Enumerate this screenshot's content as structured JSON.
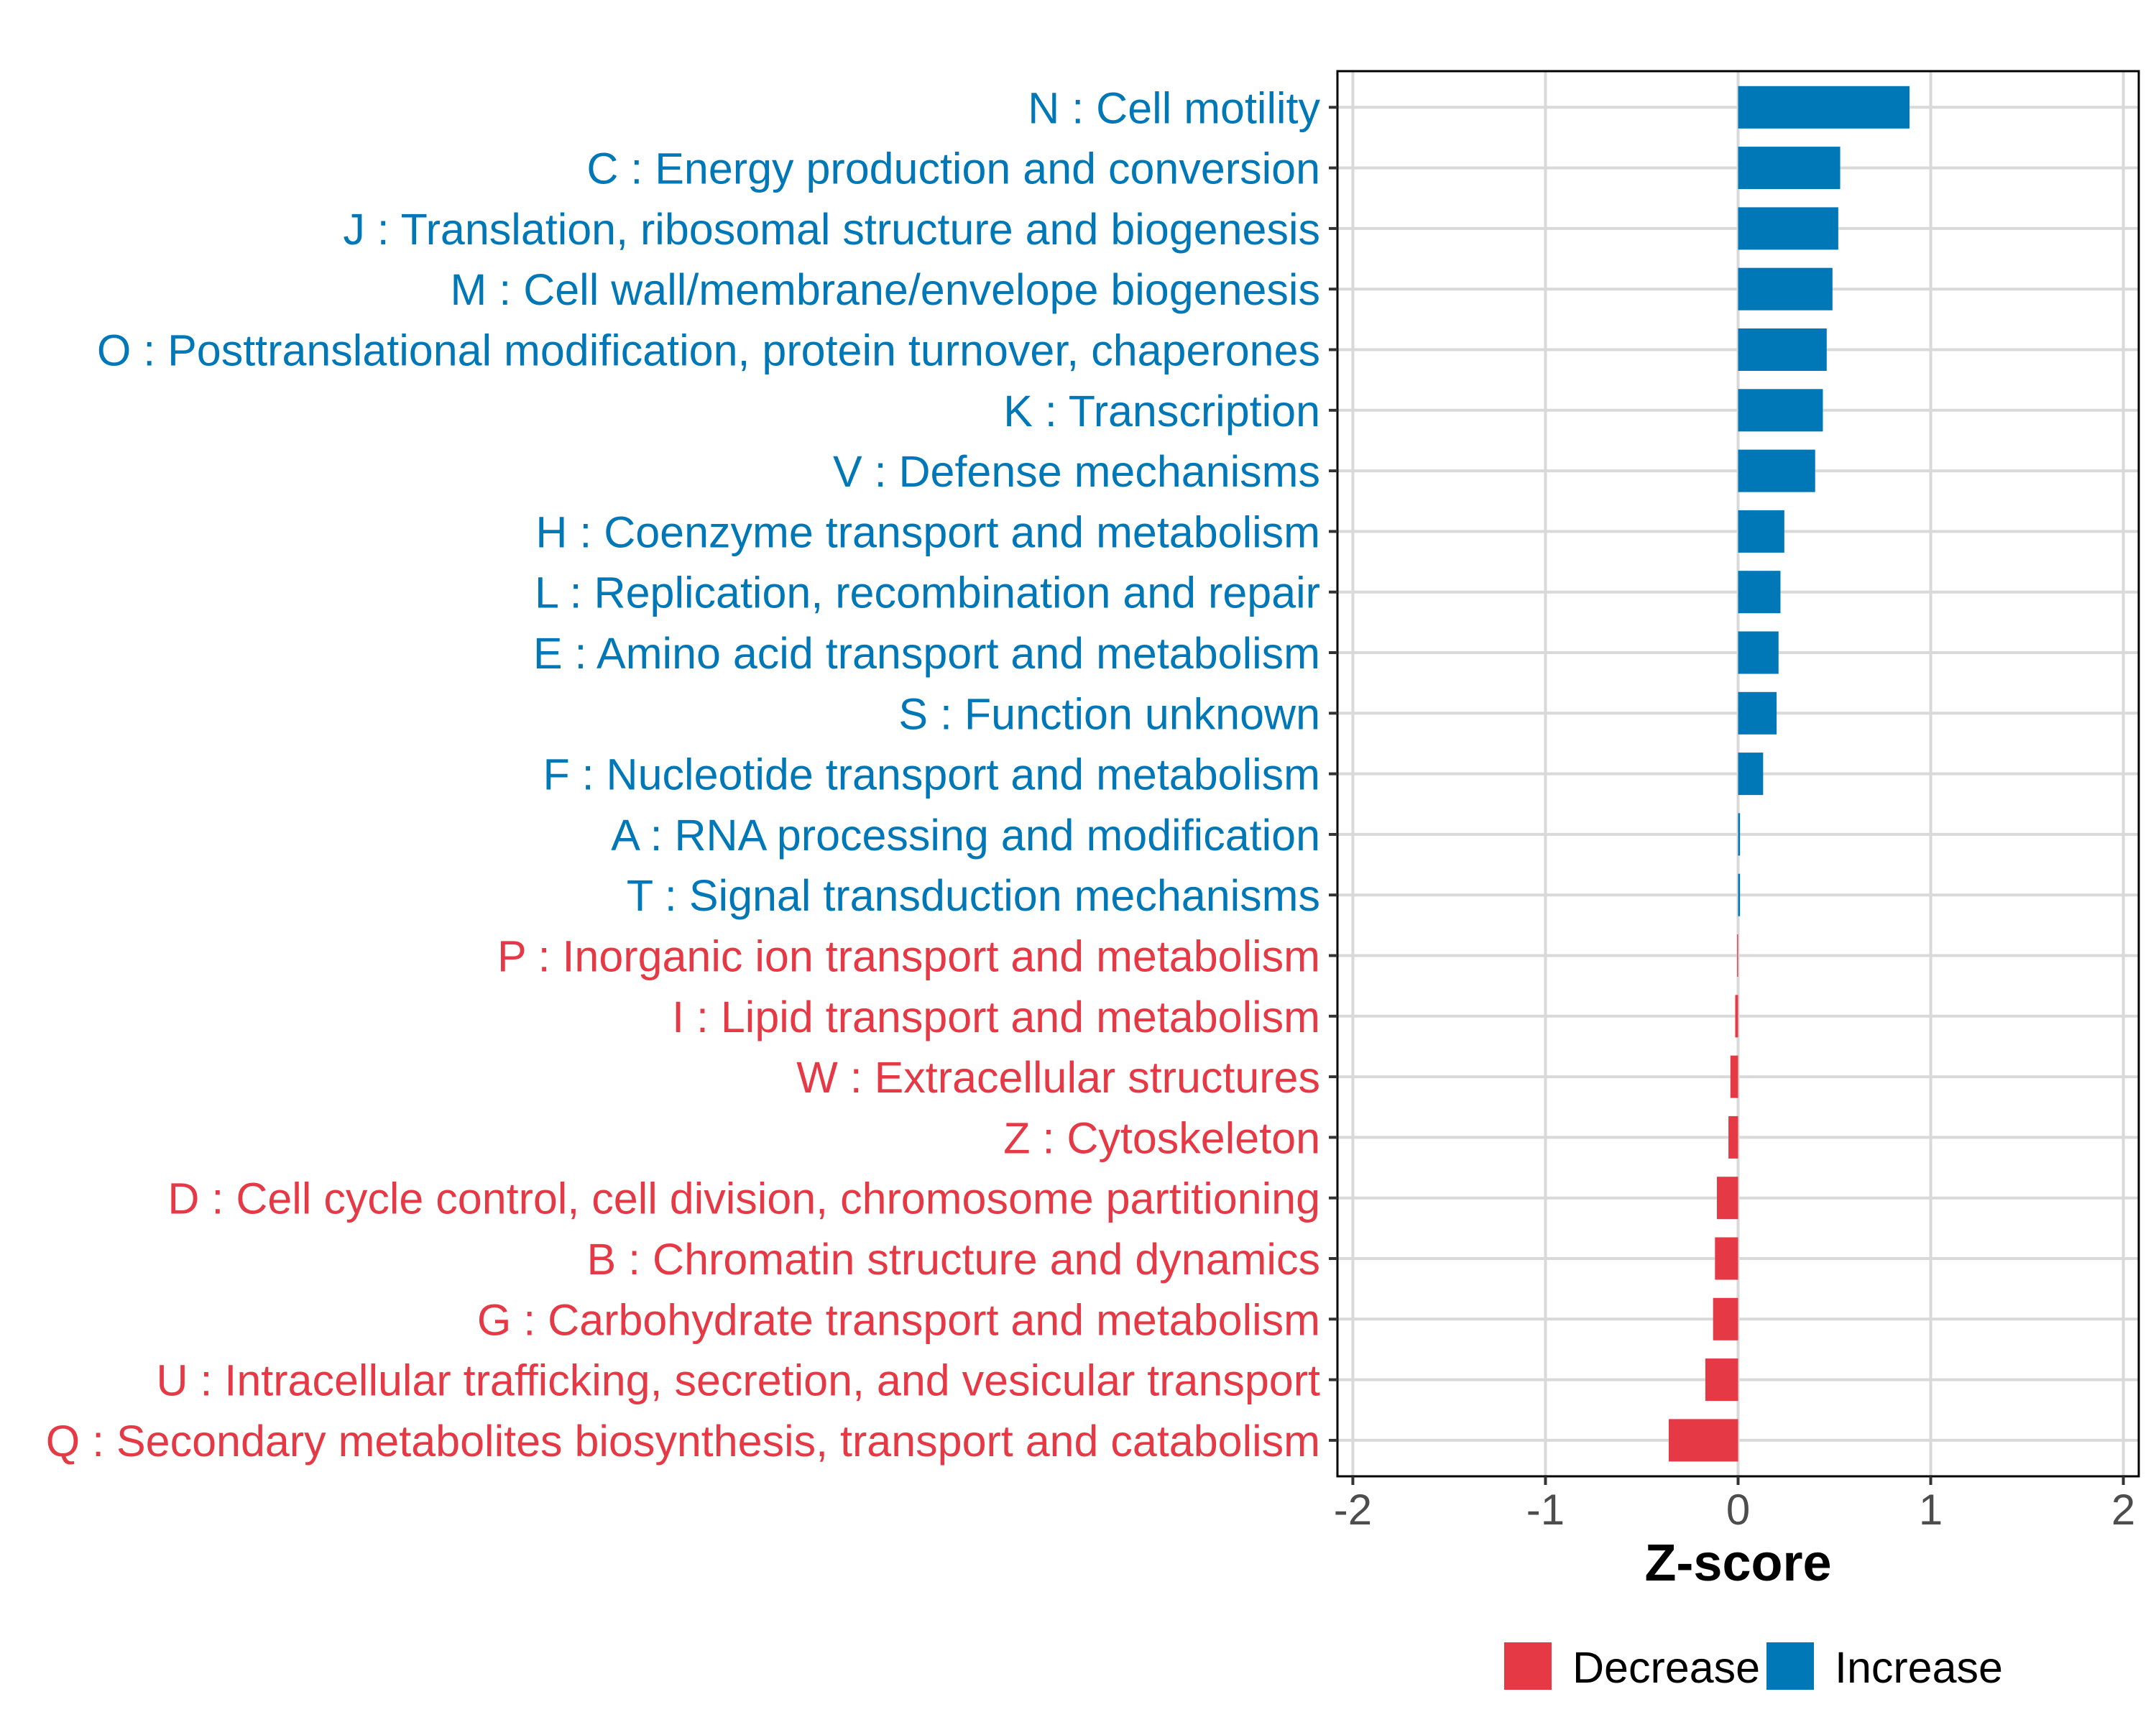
{
  "chart_data": {
    "type": "bar",
    "orientation": "horizontal",
    "title": "",
    "xlabel": "Z-score",
    "ylabel": "",
    "xlim": [
      -2.08,
      2.08
    ],
    "x_ticks": [
      -2,
      -1,
      0,
      1,
      2
    ],
    "x_tick_labels": [
      "-2",
      "-1",
      "0",
      "1",
      "2"
    ],
    "grid": true,
    "legend": {
      "position": "bottom",
      "entries": [
        {
          "name": "Decrease",
          "color": "#E63946"
        },
        {
          "name": "Increase",
          "color": "#0077B6"
        }
      ]
    },
    "categories": [
      "N : Cell motility",
      "C : Energy production and conversion",
      "J : Translation, ribosomal structure and biogenesis",
      "M : Cell wall/membrane/envelope biogenesis",
      "O : Posttranslational modification, protein turnover, chaperones",
      "K : Transcription",
      "V : Defense mechanisms",
      "H : Coenzyme transport and metabolism",
      "L : Replication, recombination and repair",
      "E : Amino acid transport and metabolism",
      "S : Function unknown",
      "F : Nucleotide transport and metabolism",
      "A : RNA processing and modification",
      "T : Signal transduction mechanisms",
      "P : Inorganic ion transport and metabolism",
      "I : Lipid transport and metabolism",
      "W : Extracellular structures",
      "Z : Cytoskeleton",
      "D : Cell cycle control, cell division, chromosome partitioning",
      "B : Chromatin structure and dynamics",
      "G : Carbohydrate transport and metabolism",
      "U : Intracellular trafficking, secretion, and vesicular transport",
      "Q : Secondary metabolites biosynthesis, transport and catabolism"
    ],
    "values": [
      0.89,
      0.53,
      0.52,
      0.49,
      0.46,
      0.44,
      0.4,
      0.24,
      0.22,
      0.21,
      0.2,
      0.13,
      0.01,
      0.01,
      -0.005,
      -0.015,
      -0.04,
      -0.05,
      -0.11,
      -0.12,
      -0.13,
      -0.17,
      -0.36
    ],
    "groups": [
      "Increase",
      "Increase",
      "Increase",
      "Increase",
      "Increase",
      "Increase",
      "Increase",
      "Increase",
      "Increase",
      "Increase",
      "Increase",
      "Increase",
      "Increase",
      "Increase",
      "Decrease",
      "Decrease",
      "Decrease",
      "Decrease",
      "Decrease",
      "Decrease",
      "Decrease",
      "Decrease",
      "Decrease"
    ],
    "colors": {
      "Increase": "#0077B6",
      "Decrease": "#E63946"
    }
  }
}
